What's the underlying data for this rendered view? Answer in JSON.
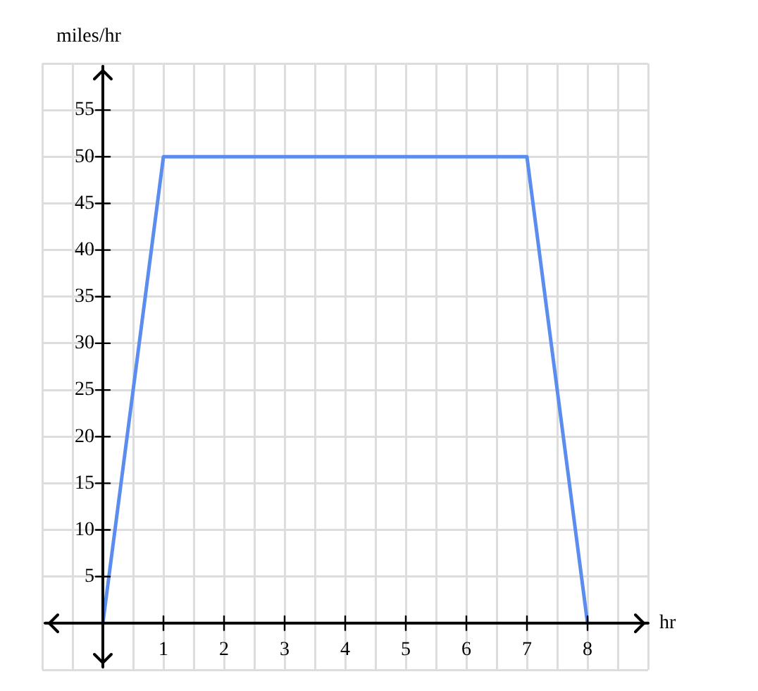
{
  "chart_data": {
    "type": "line",
    "xlabel": "hr",
    "ylabel": "miles/hr",
    "x": [
      0,
      1,
      7,
      8
    ],
    "series": [
      {
        "color": "#5b8def",
        "values": [
          0,
          50,
          50,
          0
        ]
      }
    ],
    "xlim": [
      -1,
      9
    ],
    "xticks": [
      {
        "value": -1,
        "label": null
      },
      {
        "value": -0.5,
        "label": null
      },
      {
        "value": 0,
        "label": null
      },
      {
        "value": 0.5,
        "label": null
      },
      1,
      {
        "value": 1.5,
        "label": null
      },
      2,
      {
        "value": 2.5,
        "label": null
      },
      3,
      {
        "value": 3.5,
        "label": null
      },
      4,
      {
        "value": 4.5,
        "label": null
      },
      5,
      {
        "value": 5.5,
        "label": null
      },
      6,
      {
        "value": 6.5,
        "label": null
      },
      7,
      {
        "value": 7.5,
        "label": null
      },
      8,
      {
        "value": 8.5,
        "label": null
      },
      {
        "value": 9,
        "label": null
      }
    ],
    "ylim": [
      -5,
      60
    ],
    "yticks": [
      {
        "value": -5,
        "label": null
      },
      {
        "value": 0,
        "label": null
      },
      5,
      10,
      15,
      20,
      25,
      30,
      35,
      40,
      45,
      50,
      55,
      {
        "value": 60,
        "label": null
      }
    ],
    "grid": true,
    "marker": "none",
    "line_style": "solid",
    "legend": false
  }
}
